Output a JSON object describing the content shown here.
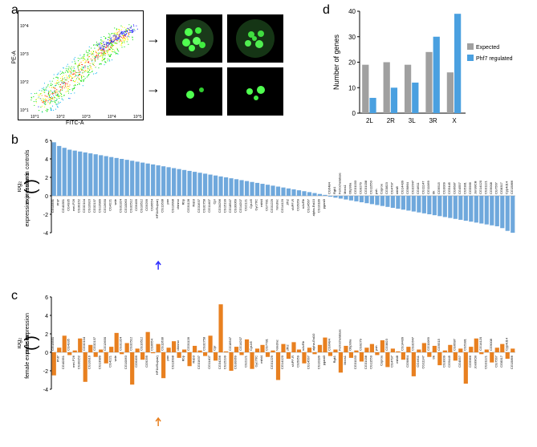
{
  "labels": {
    "a": "a",
    "b": "b",
    "c": "c",
    "d": "d"
  },
  "panel_a": {
    "x_axis": "FITC-A",
    "y_axis": "PE-A",
    "x_ticks": [
      "10^1",
      "10^2",
      "10^3",
      "10^4",
      "10^5"
    ],
    "y_ticks": [
      "10^1",
      "10^2",
      "10^3",
      "10^4"
    ],
    "density_colors": [
      "#1a1aff",
      "#00b0f0",
      "#00e000",
      "#ffff00",
      "#ff8000",
      "#ff0000"
    ]
  },
  "panel_d": {
    "y_label": "Number of genes",
    "y_max": 40,
    "y_tick": 10,
    "categories": [
      "2L",
      "2R",
      "3L",
      "3R",
      "X"
    ],
    "series": [
      {
        "name": "Expected",
        "color": "#a0a0a0",
        "values": [
          19,
          20,
          19,
          24,
          16
        ]
      },
      {
        "name": "Phf7 regulated",
        "color": "#4aa0e0",
        "values": [
          6,
          10,
          12,
          30,
          39
        ]
      }
    ],
    "bar_width": 0.35
  },
  "panel_b": {
    "y_label_top": "expression in controls",
    "y_label_bot": "expression in mutants",
    "y_prefix": "log₂",
    "y_min": -4,
    "y_max": 6,
    "y_tick": 2,
    "color": "#6fa8dc",
    "arrow_color": "#3030ff",
    "arrow_index": 20,
    "genes": [
      "CG13331",
      "Phf7",
      "CG40351",
      "CG4335",
      "mei-P26",
      "CG30152",
      "CG32104",
      "CG10916",
      "CG32137",
      "CG13989",
      "CG13630",
      "CG4221",
      "wde",
      "CG31324",
      "CG10063",
      "CG32512",
      "CG6499",
      "CG10512",
      "CG9299",
      "CG6654",
      "HP1b/Su(var)",
      "CG11638",
      "pav",
      "CG13998",
      "chinmo",
      "Rbp",
      "CG31128",
      "Rab3",
      "CG31637",
      "CG32758",
      "CG11407",
      "Cpr",
      "CG34296",
      "CG15199",
      "CG18547",
      "CG30069",
      "CG14207",
      "CG2121",
      "Cyt-b5",
      "Gyc76C",
      "mthl4",
      "CG7781",
      "CG31229",
      "Nmdmc",
      "CG14120",
      "zfh2",
      "sNPF-R",
      "CG5059",
      "nAcRb",
      "CG14567",
      "alpha-Est10",
      "CG10189",
      "pgant3",
      "CG6484",
      "Rgk1",
      "Ferrochelatase",
      "Mocs1",
      "Obp99a",
      "CG31033",
      "CG9279",
      "CG31038",
      "CG11550",
      "psh",
      "Coprox",
      "CG3823",
      "CG4797",
      "mthl8",
      "CG14439",
      "CG9864",
      "CG32647",
      "CG4611",
      "CG11147",
      "CG11069",
      "trk",
      "CG9515",
      "CG3009",
      "CG5445",
      "CG6687",
      "CG4557",
      "CG5381",
      "CG5966",
      "Jon99Ciii",
      "CG14120",
      "CG31121",
      "CG9008",
      "CG7567",
      "CG8317",
      "Cyp4d14",
      "CG15866"
    ],
    "values": [
      5.8,
      5.4,
      5.2,
      5.0,
      4.9,
      4.8,
      4.7,
      4.6,
      4.5,
      4.4,
      4.3,
      4.2,
      4.1,
      4.0,
      3.9,
      3.8,
      3.7,
      3.6,
      3.5,
      3.4,
      3.3,
      3.2,
      3.1,
      3.0,
      2.9,
      2.8,
      2.7,
      2.6,
      2.5,
      2.4,
      2.3,
      2.2,
      2.1,
      2.0,
      1.9,
      1.8,
      1.7,
      1.6,
      1.5,
      1.4,
      1.3,
      1.2,
      1.1,
      1.0,
      0.9,
      0.8,
      0.7,
      0.6,
      0.5,
      0.4,
      0.3,
      0.2,
      0.1,
      -0.1,
      -0.2,
      -0.3,
      -0.4,
      -0.5,
      -0.6,
      -0.7,
      -0.8,
      -0.9,
      -1.0,
      -1.1,
      -1.2,
      -1.3,
      -1.4,
      -1.5,
      -1.6,
      -1.7,
      -1.8,
      -1.9,
      -2.0,
      -2.1,
      -2.2,
      -2.3,
      -2.4,
      -2.5,
      -2.6,
      -2.7,
      -2.8,
      -2.9,
      -3.0,
      -3.1,
      -3.2,
      -3.3,
      -3.5,
      -3.8,
      -4.0
    ]
  },
  "panel_c": {
    "y_label_top": "male expression",
    "y_label_bot": "female expression",
    "y_prefix": "log₂",
    "y_min": -4,
    "y_max": 6,
    "y_tick": 2,
    "color": "#e88020",
    "arrow_color": "#e88020",
    "arrow_index": 20,
    "values": [
      -2.5,
      0.5,
      1.8,
      -0.3,
      0.2,
      1.5,
      -3.2,
      0.8,
      -0.5,
      0.3,
      -1.2,
      0.6,
      2.1,
      -0.2,
      1.0,
      -3.5,
      0.4,
      -0.8,
      2.2,
      -0.1,
      0.9,
      -2.8,
      0.5,
      1.2,
      -0.6,
      0.3,
      -1.5,
      0.7,
      0.2,
      -0.4,
      1.8,
      -0.9,
      5.2,
      0.1,
      -2.0,
      0.6,
      -0.3,
      1.4,
      -1.8,
      0.4,
      0.8,
      -0.5,
      0.2,
      -3.0,
      0.9,
      -0.7,
      1.1,
      0.3,
      -1.2,
      0.5,
      -0.2,
      0.8,
      1.6,
      -0.4,
      0.3,
      -2.2,
      0.7,
      -0.6,
      0.2,
      -1.0,
      0.5,
      0.9,
      -0.3,
      1.3,
      -1.6,
      0.4,
      0.1,
      -0.8,
      0.6,
      -2.6,
      0.3,
      1.0,
      -0.5,
      0.7,
      -1.4,
      0.2,
      0.8,
      -0.9,
      0.4,
      -3.4,
      0.6,
      1.5,
      -0.2,
      0.3,
      -1.1,
      0.5,
      0.9,
      -0.7,
      0.4
    ]
  }
}
